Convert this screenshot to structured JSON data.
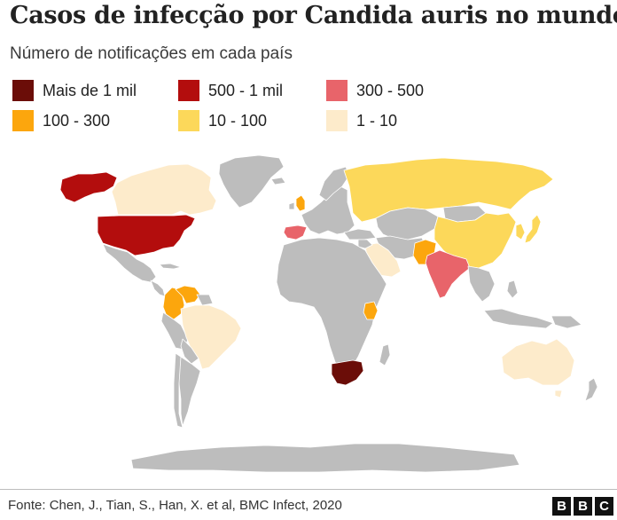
{
  "title": "Casos de infecção por Candida auris no mundo",
  "subtitle": "Número de notificações em cada país",
  "legend": [
    {
      "label": "Mais de 1 mil",
      "color": "#6b0d08"
    },
    {
      "label": "500 - 1 mil",
      "color": "#b30d0d"
    },
    {
      "label": "300 - 500",
      "color": "#e8646a"
    },
    {
      "label": "100 - 300",
      "color": "#fca60d"
    },
    {
      "label": "10 - 100",
      "color": "#fcd85a"
    },
    {
      "label": "1 - 10",
      "color": "#fdebcb"
    }
  ],
  "no_data_color": "#bdbdbd",
  "countries": [
    {
      "name": "South Africa",
      "category": "Mais de 1 mil"
    },
    {
      "name": "United States",
      "category": "500 - 1 mil"
    },
    {
      "name": "Alaska (United States)",
      "category": "500 - 1 mil"
    },
    {
      "name": "India",
      "category": "300 - 500"
    },
    {
      "name": "Spain",
      "category": "300 - 500"
    },
    {
      "name": "Colombia",
      "category": "100 - 300"
    },
    {
      "name": "Venezuela",
      "category": "100 - 300"
    },
    {
      "name": "Pakistan",
      "category": "100 - 300"
    },
    {
      "name": "Kenya",
      "category": "100 - 300"
    },
    {
      "name": "United Kingdom",
      "category": "100 - 300"
    },
    {
      "name": "Russia",
      "category": "10 - 100"
    },
    {
      "name": "China",
      "category": "10 - 100"
    },
    {
      "name": "South Korea",
      "category": "10 - 100"
    },
    {
      "name": "Japan",
      "category": "10 - 100"
    },
    {
      "name": "Canada",
      "category": "1 - 10"
    },
    {
      "name": "Brazil",
      "category": "1 - 10"
    },
    {
      "name": "Australia",
      "category": "1 - 10"
    },
    {
      "name": "Saudi Arabia",
      "category": "1 - 10"
    }
  ],
  "footer": {
    "source": "Fonte: Chen, J., Tian, S., Han, X. et al, BMC Infect, 2020",
    "logo_letters": [
      "B",
      "B",
      "C"
    ]
  }
}
